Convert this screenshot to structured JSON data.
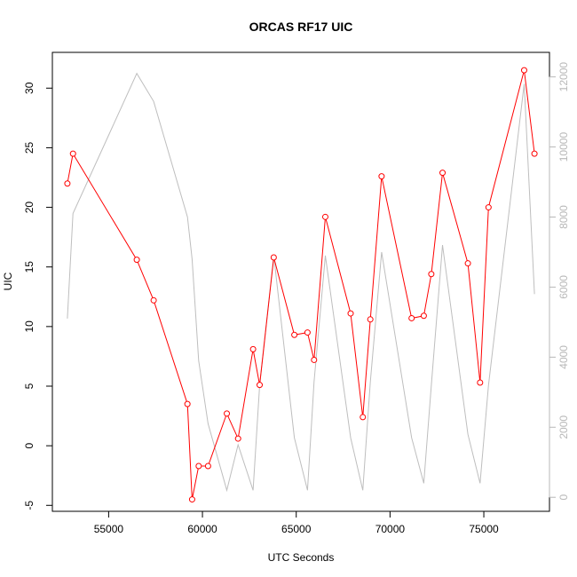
{
  "chart_data": {
    "type": "line",
    "title": "ORCAS RF17 UIC",
    "xlabel": "UTC Seconds",
    "ylabel": "UIC",
    "xlim": [
      52000,
      78500
    ],
    "ylim": [
      -5.5,
      33
    ],
    "ylim_right": [
      -400,
      12700
    ],
    "x_ticks": [
      55000,
      60000,
      65000,
      70000,
      75000
    ],
    "y_ticks": [
      -5,
      0,
      5,
      10,
      15,
      20,
      25,
      30
    ],
    "y_ticks_right": [
      0,
      2000,
      4000,
      6000,
      8000,
      10000,
      12000
    ],
    "colors": {
      "uic": "#ff0000",
      "secondary": "#bebebe"
    },
    "series": [
      {
        "axis": "left",
        "color": "#ff0000",
        "marker": "open-circle",
        "x": [
          52800,
          53100,
          56500,
          57400,
          59200,
          59450,
          59800,
          60300,
          61300,
          61900,
          62700,
          63050,
          63800,
          64900,
          65600,
          65950,
          66550,
          67900,
          68550,
          68950,
          69550,
          71150,
          71800,
          72200,
          72800,
          74150,
          74800,
          75250,
          77150,
          77700
        ],
        "y": [
          22.0,
          24.5,
          15.6,
          12.2,
          3.5,
          -4.5,
          -1.7,
          -1.7,
          2.7,
          0.6,
          8.1,
          5.1,
          15.8,
          9.3,
          9.5,
          7.2,
          19.2,
          11.1,
          2.4,
          10.6,
          22.6,
          10.7,
          10.9,
          14.4,
          22.9,
          15.3,
          5.3,
          20.0,
          31.5,
          24.5
        ]
      },
      {
        "axis": "right",
        "color": "#bebebe",
        "marker": "none",
        "x": [
          52800,
          53100,
          56500,
          57400,
          59200,
          59450,
          59800,
          60300,
          61300,
          61900,
          62700,
          63050,
          63800,
          64900,
          65600,
          65950,
          66550,
          67900,
          68550,
          68950,
          69550,
          71150,
          71800,
          72200,
          72800,
          74150,
          74800,
          75250,
          77150,
          77700
        ],
        "y": [
          5100,
          8100,
          12100,
          11300,
          8000,
          6800,
          3900,
          2100,
          200,
          1500,
          200,
          3200,
          6900,
          1700,
          200,
          3300,
          6900,
          1700,
          200,
          3300,
          7000,
          1700,
          400,
          3200,
          7200,
          1800,
          400,
          3200,
          11800,
          5800
        ]
      }
    ]
  }
}
